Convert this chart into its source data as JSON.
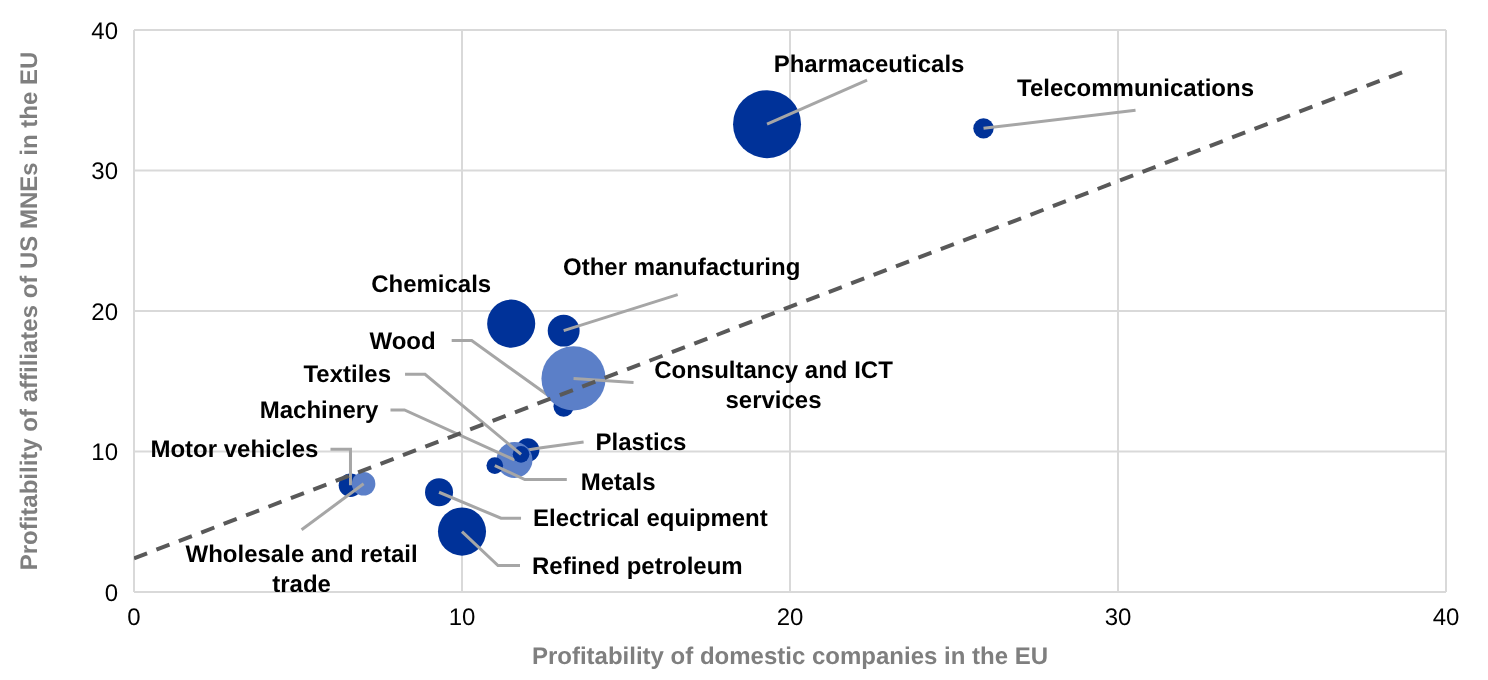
{
  "chart_data": {
    "type": "bubble",
    "xlabel": "Profitability of domestic companies in the EU",
    "ylabel": "Profitability of affiliates of US MNEs in the EU",
    "xlim": [
      0,
      40
    ],
    "xticks": [
      0,
      10,
      20,
      30,
      40
    ],
    "ylim": [
      0,
      40
    ],
    "yticks": [
      0,
      10,
      20,
      30,
      40
    ],
    "grid": true,
    "legend": false,
    "series": [
      {
        "name": "Pharmaceuticals",
        "color": "#003299",
        "x": [
          19.3
        ],
        "values": [
          33.3
        ],
        "sizes": [
          1
        ]
      },
      {
        "name": "Telecommunications",
        "color": "#003299",
        "x": [
          25.9
        ],
        "values": [
          33.0
        ],
        "sizes": [
          0.09
        ]
      },
      {
        "name": "Chemicals",
        "color": "#003299",
        "x": [
          11.5
        ],
        "values": [
          19.1
        ],
        "sizes": [
          0.5
        ]
      },
      {
        "name": "Other manufacturing",
        "color": "#003299",
        "x": [
          13.1
        ],
        "values": [
          18.6
        ],
        "sizes": [
          0.22
        ]
      },
      {
        "name": "Wood",
        "color": "#003299",
        "x": [
          13.1
        ],
        "values": [
          13.2
        ],
        "sizes": [
          0.09
        ]
      },
      {
        "name": "Consultancy and ICT services",
        "color": "#5b7fc8",
        "x": [
          13.4
        ],
        "values": [
          15.2
        ],
        "sizes": [
          0.89
        ]
      },
      {
        "name": "Plastics",
        "color": "#003299",
        "x": [
          12.0
        ],
        "values": [
          10.1
        ],
        "sizes": [
          0.12
        ]
      },
      {
        "name": "Machinery",
        "color": "#5b7fc8",
        "x": [
          11.6
        ],
        "values": [
          9.4
        ],
        "sizes": [
          0.28
        ]
      },
      {
        "name": "Metals",
        "color": "#003299",
        "x": [
          11.0
        ],
        "values": [
          9.0
        ],
        "sizes": [
          0.06
        ]
      },
      {
        "name": "Textiles",
        "color": "#003299",
        "x": [
          11.8
        ],
        "values": [
          9.8
        ],
        "sizes": [
          0.06
        ]
      },
      {
        "name": "Motor vehicles",
        "color": "#003299",
        "x": [
          6.6
        ],
        "values": [
          7.6
        ],
        "sizes": [
          0.12
        ]
      },
      {
        "name": "Wholesale and retail trade",
        "color": "#5b7fc8",
        "x": [
          7.0
        ],
        "values": [
          7.7
        ],
        "sizes": [
          0.12
        ]
      },
      {
        "name": "Electrical equipment",
        "color": "#003299",
        "x": [
          9.3
        ],
        "values": [
          7.1
        ],
        "sizes": [
          0.17
        ]
      },
      {
        "name": "Refined petroleum",
        "color": "#003299",
        "x": [
          10.0
        ],
        "values": [
          4.3
        ],
        "sizes": [
          0.5
        ]
      },
      {
        "type": "line",
        "color": "#595959",
        "line_style": "dashed",
        "marker": "none",
        "x": [
          0,
          38.9
        ],
        "values": [
          2.4,
          37.2
        ]
      }
    ]
  }
}
